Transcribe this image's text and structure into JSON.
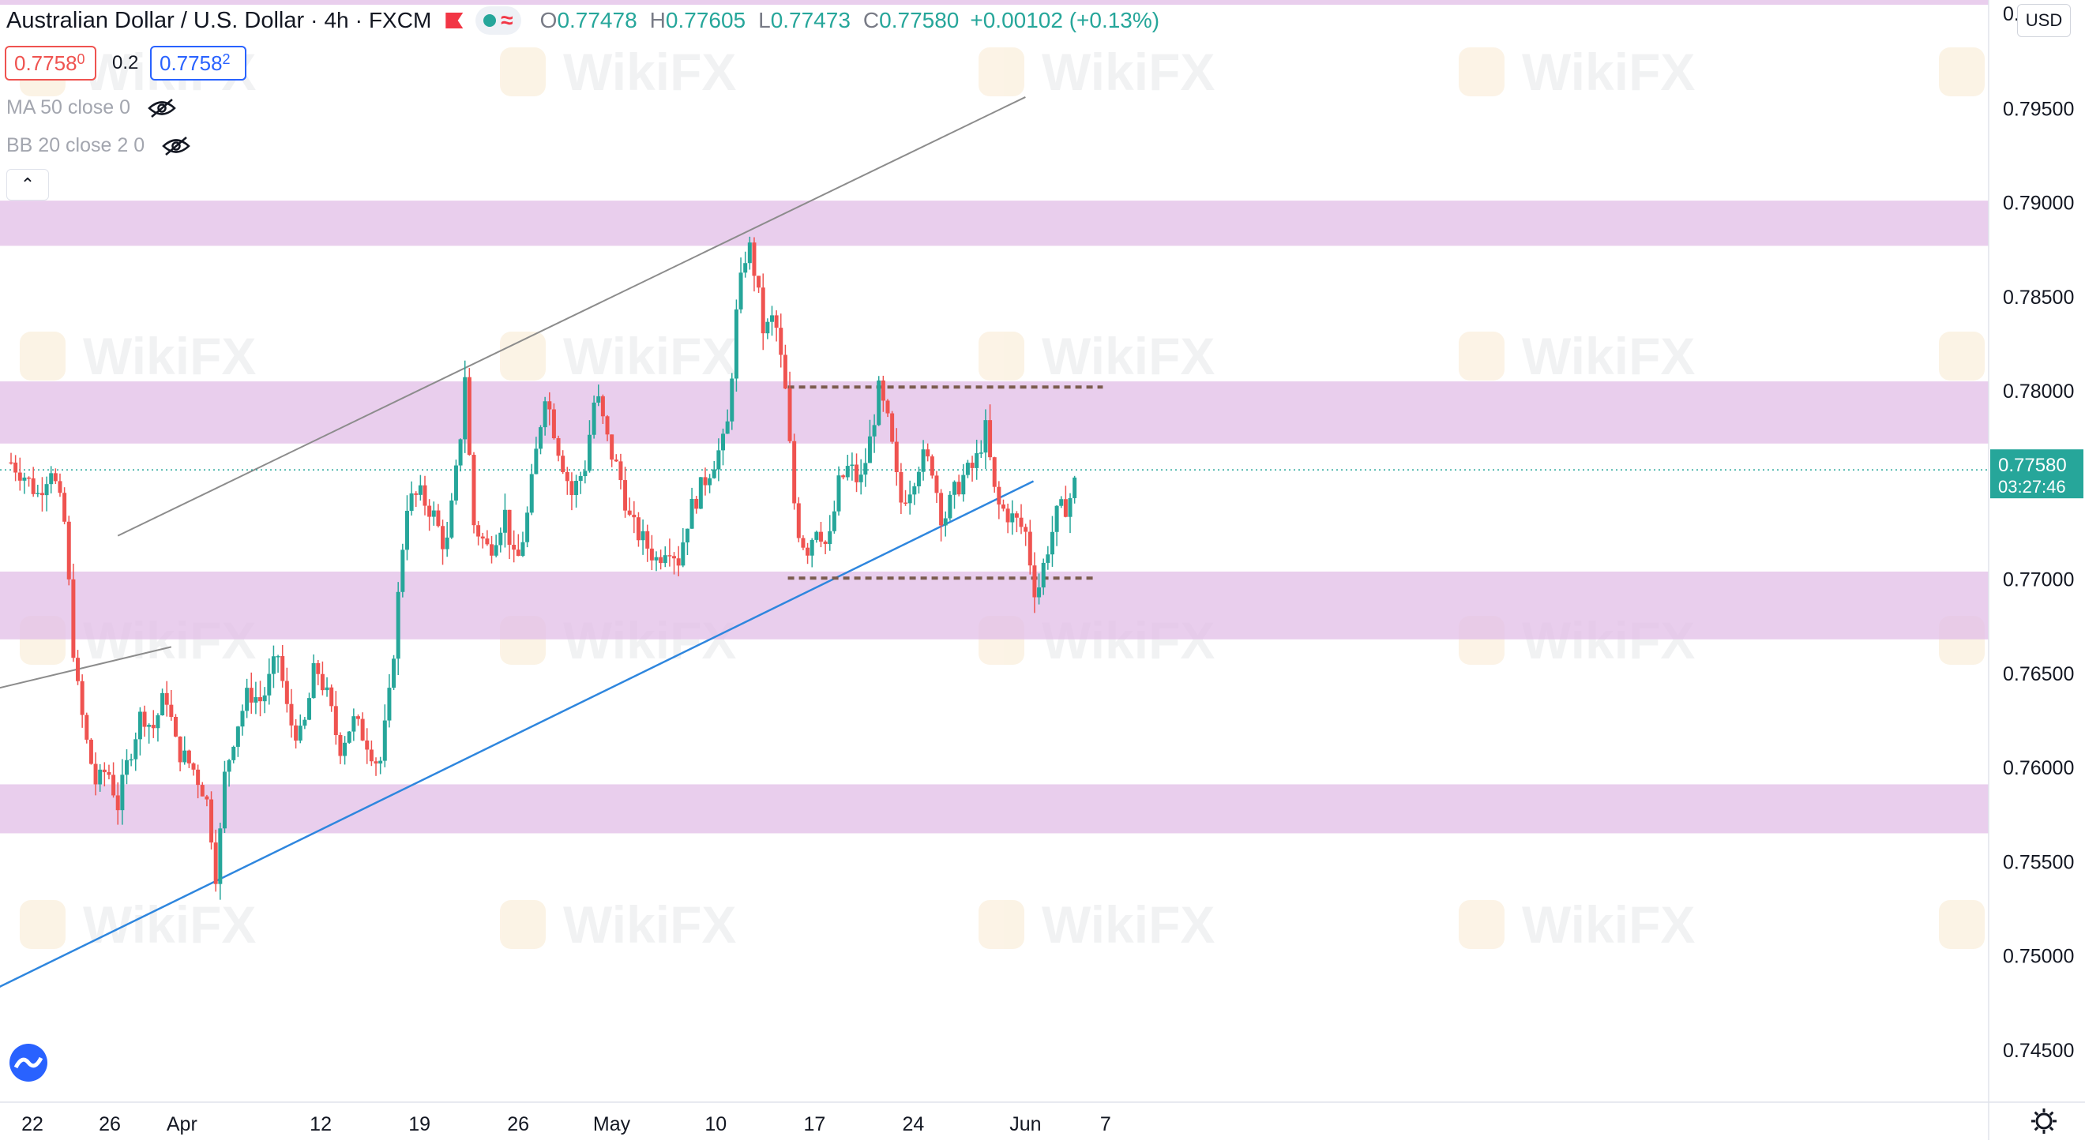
{
  "legend": {
    "symbol": "Australian Dollar / U.S. Dollar",
    "interval": "4h",
    "source": "FXCM",
    "open_label": "O",
    "open": "0.77478",
    "high_label": "H",
    "high": "0.77605",
    "low_label": "L",
    "low": "0.77473",
    "close_label": "C",
    "close": "0.77580",
    "change": "+0.00102 (+0.13%)"
  },
  "quote": {
    "sell": "0.7758",
    "sell_small": "0",
    "spread": "0.2",
    "buy": "0.7758",
    "buy_small": "2"
  },
  "indicators": [
    "MA 50 close 0",
    "BB 20 close 2 0"
  ],
  "currency": "USD",
  "current_price_label": "0.77580",
  "countdown": "03:27:46",
  "watermark": "WikiFX",
  "colors": {
    "up": "#26a69a",
    "down": "#ef5350",
    "zone": "#e1bee7",
    "trend_blue": "#2e86de",
    "channel_gray": "#8c8c8c",
    "dash": "#7b5c4e"
  },
  "chart_data": {
    "type": "candlestick",
    "title": "Australian Dollar / U.S. Dollar",
    "x_tick_labels": [
      "22",
      "26",
      "Apr",
      "12",
      "19",
      "26",
      "May",
      "10",
      "17",
      "24",
      "Jun",
      "7"
    ],
    "y_tick_labels": [
      "0.74500",
      "0.75000",
      "0.75500",
      "0.76000",
      "0.76500",
      "0.77000",
      "0.77500",
      "0.78000",
      "0.78500",
      "0.79000",
      "0.79500"
    ],
    "ylim": [
      0.7427,
      0.802
    ],
    "grid": false,
    "last_price": 0.7758,
    "support_resistance_zones": [
      [
        0.7591,
        0.7565
      ],
      [
        0.7704,
        0.7668
      ],
      [
        0.7805,
        0.7772
      ],
      [
        0.7901,
        0.7877
      ],
      [
        0.802,
        0.8005
      ]
    ],
    "dashed_levels": [
      0.7802,
      0.77005
    ],
    "trend_line_blue": [
      [
        -0.5,
        0.7483
      ],
      [
        38.3,
        0.7752
      ]
    ],
    "channel_upper_line": [
      [
        4,
        0.7723
      ],
      [
        38,
        0.7956
      ]
    ],
    "upper_gray_left": [
      [
        -0.5,
        0.7642
      ],
      [
        6,
        0.7664
      ]
    ],
    "key_closes": [
      [
        0.0,
        0.7762
      ],
      [
        0.5,
        0.7755
      ],
      [
        1.0,
        0.7745
      ],
      [
        1.5,
        0.776
      ],
      [
        2.0,
        0.773
      ],
      [
        2.4,
        0.765
      ],
      [
        2.8,
        0.7615
      ],
      [
        3.2,
        0.759
      ],
      [
        3.6,
        0.76
      ],
      [
        4.0,
        0.758
      ],
      [
        4.4,
        0.7605
      ],
      [
        4.9,
        0.763
      ],
      [
        5.3,
        0.762
      ],
      [
        5.8,
        0.764
      ],
      [
        6.2,
        0.761
      ],
      [
        6.8,
        0.76
      ],
      [
        7.3,
        0.7585
      ],
      [
        7.5,
        0.7565
      ],
      [
        7.7,
        0.754
      ],
      [
        8.0,
        0.7595
      ],
      [
        8.4,
        0.762
      ],
      [
        8.9,
        0.764
      ],
      [
        9.4,
        0.7635
      ],
      [
        10.0,
        0.766
      ],
      [
        10.4,
        0.7625
      ],
      [
        10.9,
        0.7615
      ],
      [
        11.4,
        0.7655
      ],
      [
        11.9,
        0.7635
      ],
      [
        12.3,
        0.761
      ],
      [
        12.8,
        0.7625
      ],
      [
        13.3,
        0.7615
      ],
      [
        13.8,
        0.76
      ],
      [
        14.2,
        0.764
      ],
      [
        14.5,
        0.769
      ],
      [
        14.8,
        0.774
      ],
      [
        15.3,
        0.7745
      ],
      [
        15.8,
        0.7735
      ],
      [
        16.3,
        0.7715
      ],
      [
        16.8,
        0.777
      ],
      [
        17.0,
        0.781
      ],
      [
        17.3,
        0.773
      ],
      [
        17.9,
        0.7715
      ],
      [
        18.5,
        0.7735
      ],
      [
        18.9,
        0.7705
      ],
      [
        19.3,
        0.773
      ],
      [
        19.7,
        0.777
      ],
      [
        20.0,
        0.78
      ],
      [
        20.5,
        0.777
      ],
      [
        21.0,
        0.7745
      ],
      [
        21.5,
        0.776
      ],
      [
        21.9,
        0.78
      ],
      [
        22.4,
        0.777
      ],
      [
        22.8,
        0.7755
      ],
      [
        23.2,
        0.773
      ],
      [
        23.7,
        0.772
      ],
      [
        24.2,
        0.771
      ],
      [
        24.6,
        0.772
      ],
      [
        25.0,
        0.771
      ],
      [
        25.4,
        0.7735
      ],
      [
        25.9,
        0.775
      ],
      [
        26.4,
        0.7765
      ],
      [
        26.8,
        0.7775
      ],
      [
        27.2,
        0.7845
      ],
      [
        27.6,
        0.788
      ],
      [
        27.9,
        0.786
      ],
      [
        28.2,
        0.783
      ],
      [
        28.6,
        0.784
      ],
      [
        29.0,
        0.78
      ],
      [
        29.4,
        0.773
      ],
      [
        29.8,
        0.7715
      ],
      [
        30.2,
        0.773
      ],
      [
        30.6,
        0.7715
      ],
      [
        31.0,
        0.775
      ],
      [
        31.4,
        0.776
      ],
      [
        31.8,
        0.775
      ],
      [
        32.2,
        0.7775
      ],
      [
        32.5,
        0.78
      ],
      [
        32.9,
        0.778
      ],
      [
        33.3,
        0.774
      ],
      [
        33.7,
        0.775
      ],
      [
        34.1,
        0.7765
      ],
      [
        34.5,
        0.776
      ],
      [
        34.9,
        0.773
      ],
      [
        35.3,
        0.7745
      ],
      [
        35.7,
        0.7755
      ],
      [
        36.1,
        0.776
      ],
      [
        36.5,
        0.778
      ],
      [
        36.9,
        0.774
      ],
      [
        37.3,
        0.7735
      ],
      [
        37.7,
        0.773
      ],
      [
        38.0,
        0.7725
      ],
      [
        38.4,
        0.769
      ],
      [
        38.8,
        0.7715
      ],
      [
        39.2,
        0.7735
      ],
      [
        39.6,
        0.774
      ],
      [
        40.0,
        0.7758
      ]
    ]
  }
}
